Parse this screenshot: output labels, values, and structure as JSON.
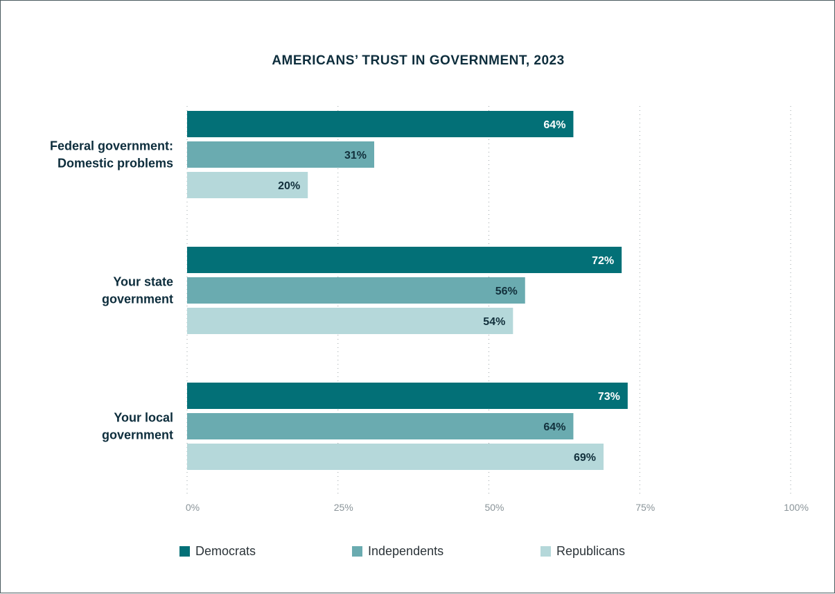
{
  "chart_data": {
    "type": "bar",
    "orientation": "horizontal",
    "title": "AMERICANS’ TRUST IN GOVERNMENT, 2023",
    "categories": [
      "Federal government:\nDomestic problems",
      "Your state\ngovernment",
      "Your local\ngovernment"
    ],
    "series": [
      {
        "name": "Democrats",
        "values": [
          64,
          72,
          73
        ],
        "color": "#037077",
        "label_color": "#ffffff"
      },
      {
        "name": "Independents",
        "values": [
          31,
          56,
          64
        ],
        "color": "#6aabb0",
        "label_color": "#12303c"
      },
      {
        "name": "Republicans",
        "values": [
          20,
          54,
          69
        ],
        "color": "#b5d8da",
        "label_color": "#12303c"
      }
    ],
    "value_suffix": "%",
    "xlim": [
      0,
      100
    ],
    "x_ticks": [
      "0%",
      "25%",
      "50%",
      "75%",
      "100%"
    ],
    "grid": "vertical dotted",
    "legend_position": "bottom"
  },
  "legend": {
    "items": [
      {
        "label": "Democrats",
        "color": "#037077"
      },
      {
        "label": "Independents",
        "color": "#6aabb0"
      },
      {
        "label": "Republicans",
        "color": "#b5d8da"
      }
    ]
  }
}
